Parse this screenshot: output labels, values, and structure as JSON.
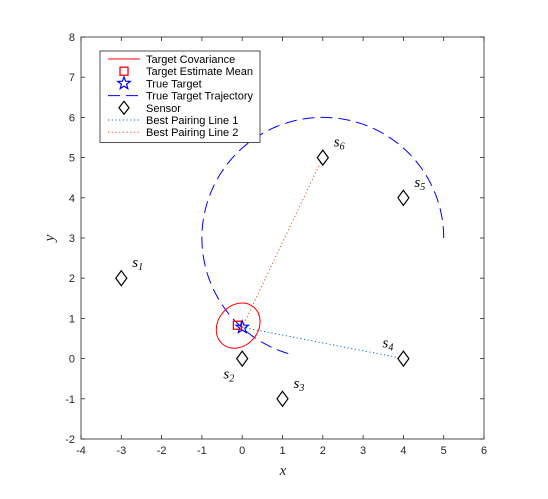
{
  "chart_data": {
    "type": "scatter",
    "xlabel": "x",
    "ylabel": "y",
    "xlim": [
      -4,
      6
    ],
    "ylim": [
      -2,
      8
    ],
    "xticks": [
      -4,
      -3,
      -2,
      -1,
      0,
      1,
      2,
      3,
      4,
      5,
      6
    ],
    "yticks": [
      -2,
      -1,
      0,
      1,
      2,
      3,
      4,
      5,
      6,
      7,
      8
    ],
    "grid": false,
    "legend_position": "top-left",
    "legend": [
      {
        "label": "Target Covariance",
        "marker": "line",
        "color": "#ff0000"
      },
      {
        "label": "Target Estimate Mean",
        "marker": "square",
        "color": "#ff0000"
      },
      {
        "label": "True Target",
        "marker": "pentagram",
        "color": "#0000ff"
      },
      {
        "label": "True Target Trajectory",
        "marker": "dashed-line",
        "color": "#0000ff"
      },
      {
        "label": "Sensor",
        "marker": "diamond",
        "color": "#000000"
      },
      {
        "label": "Best Pairing Line 1",
        "marker": "dotted-line",
        "color": "#0072bd"
      },
      {
        "label": "Best Pairing Line 2",
        "marker": "dotted-line",
        "color": "#d95319"
      }
    ],
    "sensors": [
      {
        "name": "s",
        "sub": "1",
        "x": -3,
        "y": 2,
        "label_pos": "upper-right"
      },
      {
        "name": "s",
        "sub": "2",
        "x": 0,
        "y": 0,
        "label_pos": "lower-left"
      },
      {
        "name": "s",
        "sub": "3",
        "x": 1,
        "y": -1,
        "label_pos": "upper-right"
      },
      {
        "name": "s",
        "sub": "4",
        "x": 4,
        "y": 0,
        "label_pos": "upper-left"
      },
      {
        "name": "s",
        "sub": "5",
        "x": 4,
        "y": 4,
        "label_pos": "upper-right"
      },
      {
        "name": "s",
        "sub": "6",
        "x": 2,
        "y": 5,
        "label_pos": "upper-right"
      }
    ],
    "trajectory": {
      "center": [
        2,
        3
      ],
      "radius": 3,
      "start_angle_deg": 0,
      "end_angle_deg": 255,
      "color": "#0000ff"
    },
    "true_target": {
      "x": 0,
      "y": 0.78,
      "color": "#0000ff"
    },
    "estimate_mean": {
      "x": -0.12,
      "y": 0.83,
      "color": "#ff0000"
    },
    "covariance": {
      "center": [
        -0.1,
        0.82
      ],
      "rx": 0.5,
      "ry": 0.6,
      "rotation_deg": 40,
      "color": "#ff0000"
    },
    "pairing_lines": [
      {
        "name": "Best Pairing Line 1",
        "from": [
          0,
          0.78
        ],
        "to": [
          4,
          0
        ],
        "color": "#0072bd"
      },
      {
        "name": "Best Pairing Line 2",
        "from": [
          0,
          0.78
        ],
        "to": [
          2,
          5
        ],
        "color": "#d95319"
      }
    ]
  }
}
